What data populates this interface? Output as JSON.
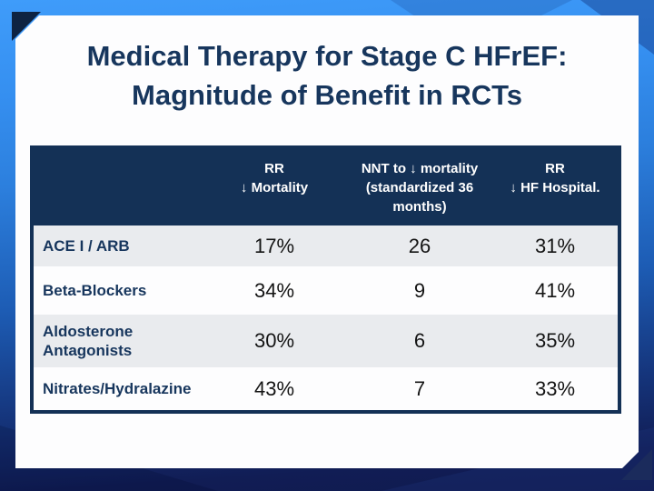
{
  "slide": {
    "title": {
      "line1": "Medical Therapy for Stage C HFrEF:",
      "line2": "Magnitude of Benefit in RCTs"
    },
    "table": {
      "header": {
        "drug_col": "",
        "rr_mortality": {
          "line1": "RR",
          "line2": "↓ Mortality"
        },
        "nnt": {
          "line1": "NNT to ↓ mortality",
          "line2": "(standardized 36",
          "line3": "months)"
        },
        "rr_hf_hospital": {
          "line1": "RR",
          "line2": "↓ HF Hospital."
        }
      },
      "rows": [
        {
          "label": "ACE I / ARB",
          "rr_mortality": "17%",
          "nnt": "26",
          "rr_hf_hospital": "31%"
        },
        {
          "label": "Beta-Blockers",
          "rr_mortality": "34%",
          "nnt": "9",
          "rr_hf_hospital": "41%"
        },
        {
          "label": "Aldosterone Antagonists",
          "rr_mortality": "30%",
          "nnt": "6",
          "rr_hf_hospital": "35%"
        },
        {
          "label": "Nitrates/Hydralazine",
          "rr_mortality": "43%",
          "nnt": "7",
          "rr_hf_hospital": "33%"
        }
      ]
    },
    "colors": {
      "header_bg": "#143156",
      "row_alt_bg": "#e9ebee",
      "row_bg": "#fdfdfe",
      "title_text": "#17365d",
      "header_text": "#ffffff",
      "value_text": "#141414",
      "bg_gradient_top": "#3f9cfa",
      "bg_gradient_bottom": "#101a4e",
      "fold_dark": "#0e2342"
    }
  }
}
